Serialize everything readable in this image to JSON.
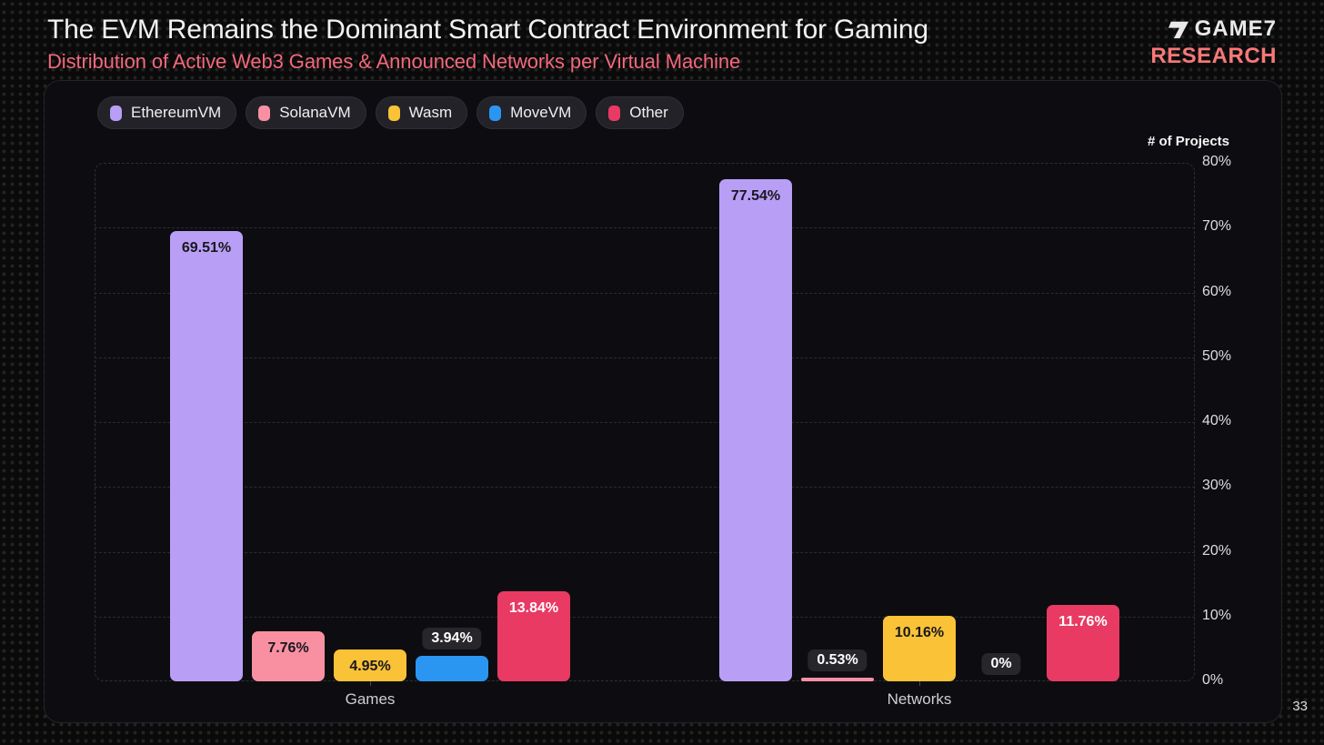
{
  "page": {
    "number": "33"
  },
  "header": {
    "title": "The EVM Remains the Dominant Smart Contract Environment for Gaming",
    "subtitle": "Distribution of Active Web3 Games & Announced Networks per Virtual Machine",
    "logo": {
      "brand": "GAME7",
      "sub": "RESEARCH",
      "brand_color": "#e9e9e9",
      "sub_color": "#f87878"
    }
  },
  "chart_data": {
    "type": "bar",
    "title": "",
    "xlabel": "",
    "ylabel": "# of Projects",
    "ylim": [
      0,
      80
    ],
    "yticks": [
      "0%",
      "10%",
      "20%",
      "30%",
      "40%",
      "50%",
      "60%",
      "70%",
      "80%"
    ],
    "grid": "horizontal-dashed",
    "legend_position": "top-left",
    "categories": [
      "Games",
      "Networks"
    ],
    "series": [
      {
        "name": "EthereumVM",
        "color": "#b99ef6",
        "label_color": "#18181d",
        "values": [
          69.51,
          77.54
        ],
        "display": [
          "69.51%",
          "77.54%"
        ]
      },
      {
        "name": "SolanaVM",
        "color": "#f990a2",
        "label_color": "#18181d",
        "values": [
          7.76,
          0.53
        ],
        "display": [
          "7.76%",
          "0.53%"
        ]
      },
      {
        "name": "Wasm",
        "color": "#fac237",
        "label_color": "#18181d",
        "values": [
          4.95,
          10.16
        ],
        "display": [
          "4.95%",
          "10.16%"
        ]
      },
      {
        "name": "MoveVM",
        "color": "#2b96f2",
        "label_color": "#ffffff",
        "values": [
          3.94,
          0
        ],
        "display": [
          "3.94%",
          "0%"
        ]
      },
      {
        "name": "Other",
        "color": "#e83a63",
        "label_color": "#ffffff",
        "values": [
          13.84,
          11.76
        ],
        "display": [
          "13.84%",
          "11.76%"
        ]
      }
    ]
  }
}
